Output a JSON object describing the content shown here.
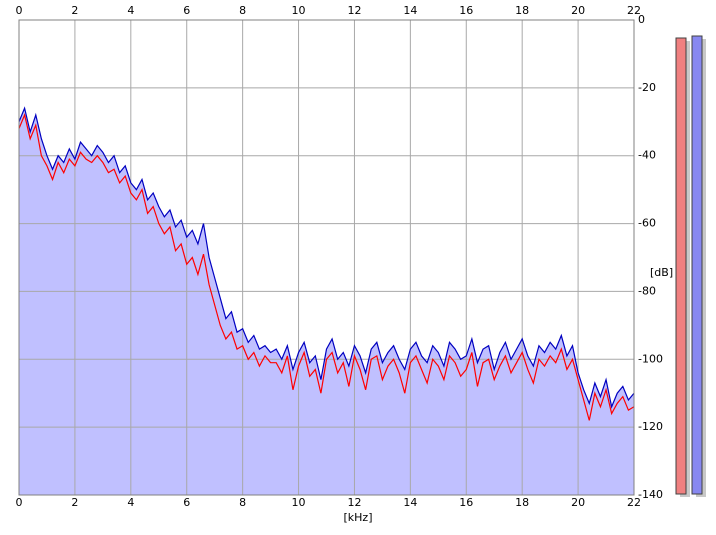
{
  "chart_data": {
    "type": "line",
    "xlabel": "[kHz]",
    "ylabel": "[dB]",
    "x": [
      0,
      0.2,
      0.4,
      0.6,
      0.8,
      1,
      1.2,
      1.4,
      1.6,
      1.8,
      2,
      2.2,
      2.4,
      2.6,
      2.8,
      3,
      3.2,
      3.4,
      3.6,
      3.8,
      4,
      4.2,
      4.4,
      4.6,
      4.8,
      5,
      5.2,
      5.4,
      5.6,
      5.8,
      6,
      6.2,
      6.4,
      6.6,
      6.8,
      7,
      7.2,
      7.4,
      7.6,
      7.8,
      8,
      8.2,
      8.4,
      8.6,
      8.8,
      9,
      9.2,
      9.4,
      9.6,
      9.8,
      10,
      10.2,
      10.4,
      10.6,
      10.8,
      11,
      11.2,
      11.4,
      11.6,
      11.8,
      12,
      12.2,
      12.4,
      12.6,
      12.8,
      13,
      13.2,
      13.4,
      13.6,
      13.8,
      14,
      14.2,
      14.4,
      14.6,
      14.8,
      15,
      15.2,
      15.4,
      15.6,
      15.8,
      16,
      16.2,
      16.4,
      16.6,
      16.8,
      17,
      17.2,
      17.4,
      17.6,
      17.8,
      18,
      18.2,
      18.4,
      18.6,
      18.8,
      19,
      19.2,
      19.4,
      19.6,
      19.8,
      20,
      20.2,
      20.4,
      20.6,
      20.8,
      21,
      21.2,
      21.4,
      21.6,
      21.8,
      22
    ],
    "series": [
      {
        "color": "#ff0000",
        "values": [
          -32,
          -28,
          -35,
          -31,
          -40,
          -43,
          -47,
          -42,
          -45,
          -41,
          -43,
          -39,
          -41,
          -42,
          -40,
          -42,
          -45,
          -44,
          -48,
          -46,
          -51,
          -53,
          -50,
          -57,
          -55,
          -60,
          -63,
          -61,
          -68,
          -66,
          -72,
          -70,
          -75,
          -69,
          -78,
          -84,
          -90,
          -94,
          -92,
          -97,
          -96,
          -100,
          -98,
          -102,
          -99,
          -101,
          -101,
          -104,
          -99,
          -109,
          -102,
          -98,
          -105,
          -103,
          -110,
          -100,
          -98,
          -104,
          -101,
          -108,
          -99,
          -103,
          -109,
          -100,
          -99,
          -106,
          -102,
          -100,
          -104,
          -110,
          -101,
          -99,
          -103,
          -107,
          -100,
          -102,
          -106,
          -99,
          -101,
          -105,
          -103,
          -98,
          -108,
          -101,
          -100,
          -106,
          -102,
          -99,
          -104,
          -101,
          -98,
          -103,
          -107,
          -100,
          -102,
          -99,
          -101,
          -97,
          -103,
          -100,
          -106,
          -112,
          -118,
          -110,
          -114,
          -109,
          -116,
          -113,
          -111,
          -115,
          -114
        ]
      },
      {
        "color": "#0000c0",
        "area_color": "#c0c0ff",
        "values": [
          -30,
          -26,
          -33,
          -28,
          -35,
          -40,
          -44,
          -40,
          -42,
          -38,
          -41,
          -36,
          -38,
          -40,
          -37,
          -39,
          -42,
          -40,
          -45,
          -43,
          -48,
          -50,
          -47,
          -53,
          -51,
          -55,
          -58,
          -56,
          -61,
          -59,
          -64,
          -62,
          -66,
          -60,
          -70,
          -76,
          -82,
          -88,
          -86,
          -92,
          -91,
          -95,
          -93,
          -97,
          -96,
          -98,
          -97,
          -100,
          -96,
          -103,
          -98,
          -95,
          -101,
          -99,
          -106,
          -97,
          -94,
          -100,
          -98,
          -102,
          -96,
          -99,
          -104,
          -97,
          -95,
          -101,
          -98,
          -96,
          -100,
          -103,
          -97,
          -95,
          -99,
          -101,
          -96,
          -98,
          -102,
          -95,
          -97,
          -100,
          -99,
          -94,
          -101,
          -97,
          -96,
          -103,
          -98,
          -95,
          -100,
          -97,
          -94,
          -99,
          -102,
          -96,
          -98,
          -95,
          -97,
          -93,
          -99,
          -96,
          -104,
          -109,
          -113,
          -107,
          -111,
          -106,
          -114,
          -110,
          -108,
          -112,
          -110
        ]
      }
    ],
    "xlim": [
      0,
      22
    ],
    "xticks": [
      0,
      2,
      4,
      6,
      8,
      10,
      12,
      14,
      16,
      18,
      20,
      22
    ],
    "ylim": [
      -140,
      0
    ],
    "yticks": [
      0,
      -20,
      -40,
      -60,
      -80,
      -100,
      -120,
      -140
    ],
    "grid": true
  }
}
